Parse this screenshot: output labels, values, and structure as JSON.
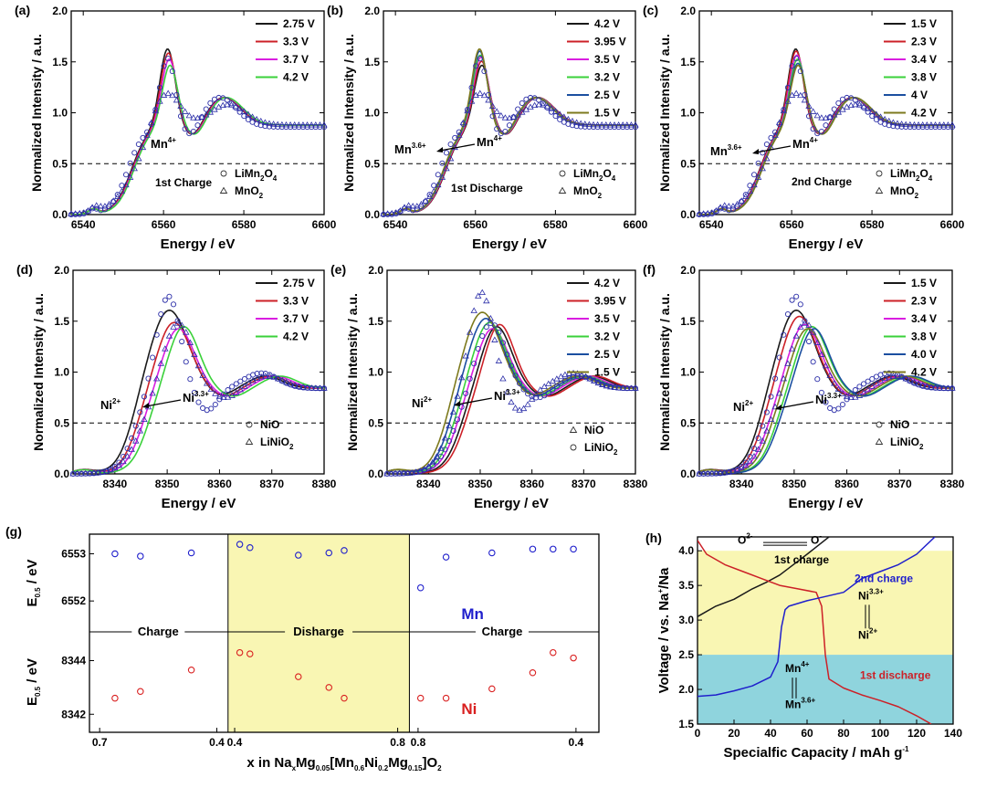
{
  "colors": {
    "black": "#1a1a1a",
    "red": "#cc2027",
    "magenta": "#d91ee0",
    "green": "#3ad13a",
    "navy": "#1b4fa0",
    "olive": "#7d7a1e",
    "marker": "#2b2ea8",
    "yellow_band": "#f9f6b3",
    "cyan_band": "#8fd4dd",
    "curve_blue": "#1f1fcc",
    "ni_red": "#d92020"
  },
  "chart_data": [
    {
      "id": "a",
      "type": "line",
      "panel_label": "(a)",
      "xlabel": "Energy / eV",
      "ylabel": "Normalized Intensity / a.u.",
      "xlim": [
        6537,
        6600
      ],
      "ylim": [
        0,
        2.0
      ],
      "xticks": [
        "6540",
        "6560",
        "6580",
        "6600"
      ],
      "yticks": [
        "0.0",
        "0.5",
        "1.0",
        "1.5",
        "2.0"
      ],
      "edge": "Mn",
      "legend": [
        "2.75 V",
        "3.3 V",
        "3.7 V",
        "4.2 V"
      ],
      "reference_legend": [
        "LiMn2O4",
        "MnO2"
      ],
      "process": "1st Charge",
      "ann_from": "",
      "ann_to": "Mn4+",
      "dashed_y": 0.5
    },
    {
      "id": "b",
      "type": "line",
      "panel_label": "(b)",
      "xlabel": "Energy / eV",
      "ylabel": "Normalized Intensity / a.u.",
      "xlim": [
        6537,
        6600
      ],
      "ylim": [
        0,
        2.0
      ],
      "xticks": [
        "6540",
        "6560",
        "6580",
        "6600"
      ],
      "yticks": [
        "0.0",
        "0.5",
        "1.0",
        "1.5",
        "2.0"
      ],
      "edge": "Mn",
      "legend": [
        "4.2 V",
        "3.95 V",
        "3.5 V",
        "3.2 V",
        "2.5 V",
        "1.5 V"
      ],
      "reference_legend": [
        "LiMn2O4",
        "MnO2"
      ],
      "process": "1st Discharge",
      "ann_from": "Mn3.6+",
      "ann_to": "Mn4+",
      "dashed_y": 0.5
    },
    {
      "id": "c",
      "type": "line",
      "panel_label": "(c)",
      "xlabel": "Energy / eV",
      "ylabel": "Normalized Intensity / a.u.",
      "xlim": [
        6537,
        6600
      ],
      "ylim": [
        0,
        2.0
      ],
      "xticks": [
        "6540",
        "6560",
        "6580",
        "6600"
      ],
      "yticks": [
        "0.0",
        "0.5",
        "1.0",
        "1.5",
        "2.0"
      ],
      "edge": "Mn",
      "legend": [
        "1.5 V",
        "2.3 V",
        "3.4 V",
        "3.8 V",
        "4 V",
        "4.2 V"
      ],
      "reference_legend": [
        "LiMn2O4",
        "MnO2"
      ],
      "process": "2nd Charge",
      "ann_from": "Mn3.6+",
      "ann_to": "Mn4+",
      "dashed_y": 0.5
    },
    {
      "id": "d",
      "type": "line",
      "panel_label": "(d)",
      "xlabel": "Energy / eV",
      "ylabel": "Normalized Intensity / a.u.",
      "xlim": [
        8332,
        8380
      ],
      "ylim": [
        0,
        2.0
      ],
      "xticks": [
        "8340",
        "8350",
        "8360",
        "8370",
        "8380"
      ],
      "yticks": [
        "0.0",
        "0.5",
        "1.0",
        "1.5",
        "2.0"
      ],
      "edge": "Ni",
      "legend": [
        "2.75 V",
        "3.3 V",
        "3.7 V",
        "4.2 V"
      ],
      "reference_legend": [
        "NiO",
        "LiNiO2"
      ],
      "process": "",
      "ann_from": "Ni2+",
      "ann_to": "Ni3.3+",
      "dashed_y": 0.5
    },
    {
      "id": "e",
      "type": "line",
      "panel_label": "(e)",
      "xlabel": "Energy / eV",
      "ylabel": "Normalized Intensity / a.u.",
      "xlim": [
        8332,
        8380
      ],
      "ylim": [
        0,
        2.0
      ],
      "xticks": [
        "8340",
        "8350",
        "8360",
        "8370",
        "8380"
      ],
      "yticks": [
        "0.0",
        "0.5",
        "1.0",
        "1.5",
        "2.0"
      ],
      "edge": "Ni",
      "legend": [
        "4.2 V",
        "3.95 V",
        "3.5 V",
        "3.2 V",
        "2.5 V",
        "1.5 V"
      ],
      "reference_legend": [
        "NiO",
        "LiNiO2"
      ],
      "process": "",
      "ann_from": "Ni2+",
      "ann_to": "Ni3.3+",
      "dashed_y": 0.5
    },
    {
      "id": "f",
      "type": "line",
      "panel_label": "(f)",
      "xlabel": "Energy / eV",
      "ylabel": "Normalized Intensity / a.u.",
      "xlim": [
        8332,
        8380
      ],
      "ylim": [
        0,
        2.0
      ],
      "xticks": [
        "8340",
        "8350",
        "8360",
        "8370",
        "8380"
      ],
      "yticks": [
        "0.0",
        "0.5",
        "1.0",
        "1.5",
        "2.0"
      ],
      "edge": "Ni",
      "legend": [
        "1.5 V",
        "2.3 V",
        "3.4 V",
        "3.8 V",
        "4.0 V",
        "4.2 V"
      ],
      "reference_legend": [
        "NiO",
        "LiNiO2"
      ],
      "process": "",
      "ann_from": "Ni2+",
      "ann_to": "Ni3.3+",
      "dashed_y": 0.5
    },
    {
      "id": "g",
      "type": "scatter",
      "panel_label": "(g)",
      "xlabel": "x in NaxMg0.05[Mn0.6Ni0.2Mg0.15]O2",
      "ylabel_top": "E0.5 / eV",
      "ylabel_bottom": "E0.5 / eV",
      "xticks": [
        "0.7",
        "0.4",
        "0.4",
        "0.8",
        "0.8",
        "0.4"
      ],
      "top_ylim": [
        6551.5,
        6553.3
      ],
      "top_yticks": [
        "6552",
        "6553"
      ],
      "bottom_ylim": [
        8341.6,
        8344.8
      ],
      "bottom_yticks": [
        "8342",
        "8344"
      ],
      "segments": [
        "Charge",
        "Disharge",
        "Charge"
      ],
      "label_top": "Mn",
      "label_bottom": "Ni",
      "mn_values": [
        6553.0,
        6552.95,
        6553.02,
        6553.2,
        6553.13,
        6552.97,
        6553.02,
        6553.07,
        6552.28,
        6552.93,
        6553.02,
        6553.1,
        6553.1,
        6553.1
      ],
      "ni_values": [
        8342.6,
        8342.85,
        8343.65,
        8344.3,
        8344.25,
        8343.4,
        8343.0,
        8342.6,
        8342.6,
        8342.6,
        8342.95,
        8343.55,
        8344.3,
        8344.1
      ],
      "progress": [
        0.05,
        0.1,
        0.2,
        0.295,
        0.315,
        0.41,
        0.47,
        0.5,
        0.65,
        0.7,
        0.79,
        0.87,
        0.91,
        0.95
      ]
    },
    {
      "id": "h",
      "type": "line",
      "panel_label": "(h)",
      "xlabel": "Specialfic Capacity / mAh g-1",
      "ylabel": "Voltage / vs. Na+/Na",
      "xlim": [
        0,
        140
      ],
      "ylim": [
        1.5,
        4.2
      ],
      "xticks": [
        "0",
        "20",
        "40",
        "60",
        "80",
        "100",
        "120",
        "140"
      ],
      "yticks": [
        "1.5",
        "2.0",
        "2.5",
        "3.0",
        "3.5",
        "4.0"
      ],
      "bands": [
        {
          "from": 2.5,
          "to": 4.0,
          "name": "yellow"
        },
        {
          "from": 1.5,
          "to": 2.5,
          "name": "cyan"
        }
      ],
      "series": [
        {
          "name": "1st charge",
          "x": [
            0,
            10,
            20,
            30,
            38,
            45,
            50,
            60,
            72
          ],
          "y": [
            3.05,
            3.2,
            3.3,
            3.45,
            3.55,
            3.65,
            3.75,
            3.95,
            4.2
          ]
        },
        {
          "name": "1st discharge",
          "x": [
            0,
            5,
            15,
            25,
            35,
            45,
            55,
            65,
            68,
            70,
            72,
            80,
            90,
            100,
            110,
            120,
            128
          ],
          "y": [
            4.15,
            3.95,
            3.8,
            3.7,
            3.6,
            3.5,
            3.45,
            3.4,
            3.2,
            2.5,
            2.15,
            2.02,
            1.92,
            1.84,
            1.75,
            1.62,
            1.5
          ]
        },
        {
          "name": "2nd charge",
          "x": [
            0,
            10,
            20,
            30,
            40,
            44,
            46,
            48,
            50,
            60,
            70,
            80,
            90,
            100,
            110,
            120,
            130
          ],
          "y": [
            1.9,
            1.92,
            1.98,
            2.05,
            2.18,
            2.4,
            2.9,
            3.15,
            3.2,
            3.28,
            3.34,
            3.4,
            3.6,
            3.7,
            3.8,
            3.95,
            4.2
          ]
        }
      ],
      "ann_oxygen_from": "O2-",
      "ann_oxygen_to": "O-",
      "ann_ni_from": "Ni2+",
      "ann_ni_to": "Ni3.3+",
      "ann_mn_from": "Mn3.6+",
      "ann_mn_to": "Mn4+"
    }
  ]
}
